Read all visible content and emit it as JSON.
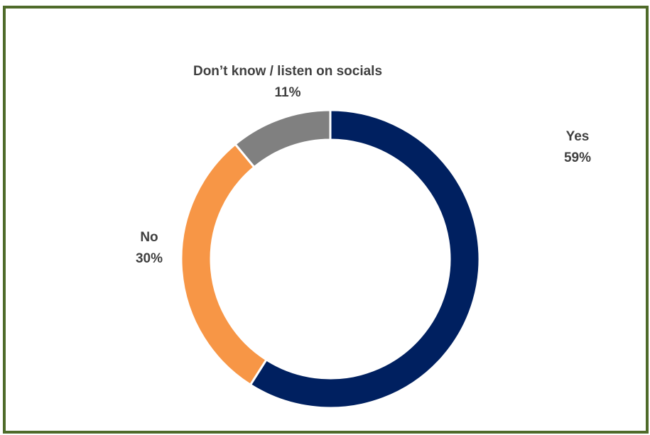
{
  "colors": {
    "frame": "#4f6b2a",
    "background": "#ffffff",
    "label_text": "#404040",
    "slice_separator": "#ffffff"
  },
  "chart_data": {
    "type": "pie",
    "variant": "donut",
    "title": "",
    "start_angle_deg": 0,
    "direction": "clockwise",
    "slices": [
      {
        "label": "Yes",
        "value": 59,
        "value_label": "59%",
        "color": "#002060"
      },
      {
        "label": "No",
        "value": 30,
        "value_label": "30%",
        "color": "#f79646"
      },
      {
        "label": "Don’t know / listen on socials",
        "value": 11,
        "value_label": "11%",
        "color": "#808080"
      }
    ],
    "legend": "none",
    "data_labels": "outside"
  }
}
